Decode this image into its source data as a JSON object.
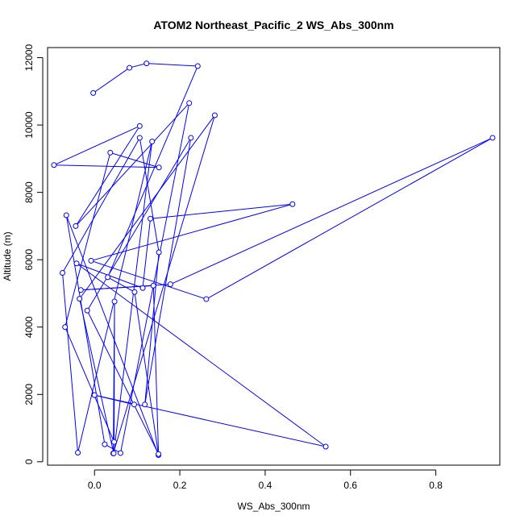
{
  "chart_data": {
    "type": "line",
    "title": "ATOM2 Northeast_Pacific_2 WS_Abs_300nm",
    "xlabel": "WS_Abs_300nm",
    "ylabel": "Altitude (m)",
    "xlim": [
      -0.11,
      0.95
    ],
    "ylim": [
      -100,
      12300
    ],
    "x_ticks": [
      0.0,
      0.2,
      0.4,
      0.6,
      0.8
    ],
    "x_tick_labels": [
      "0.0",
      "0.2",
      "0.4",
      "0.6",
      "0.8"
    ],
    "y_ticks": [
      0,
      2000,
      4000,
      6000,
      8000,
      10000,
      12000
    ],
    "y_tick_labels": [
      "0",
      "2000",
      "4000",
      "6000",
      "8000",
      "10000",
      "12000"
    ],
    "grid": false,
    "legend": "none",
    "series": [
      {
        "color": "#0000ff",
        "marker": "open-circle",
        "points": [
          {
            "x": -0.003,
            "y": 10950
          },
          {
            "x": 0.082,
            "y": 11700
          },
          {
            "x": 0.122,
            "y": 11830
          },
          {
            "x": 0.242,
            "y": 11750
          },
          {
            "x": 0.031,
            "y": 5480
          },
          {
            "x": 0.094,
            "y": 5040
          },
          {
            "x": 0.15,
            "y": 200
          },
          {
            "x": -0.066,
            "y": 7320
          },
          {
            "x": 0.024,
            "y": 520
          },
          {
            "x": 0.061,
            "y": 260
          },
          {
            "x": 0.222,
            "y": 10650
          },
          {
            "x": -0.044,
            "y": 7000
          },
          {
            "x": 0.106,
            "y": 9970
          },
          {
            "x": -0.095,
            "y": 8810
          },
          {
            "x": 0.151,
            "y": 8740
          },
          {
            "x": 0.037,
            "y": 9180
          },
          {
            "x": -0.069,
            "y": 4000
          },
          {
            "x": 0.046,
            "y": 590
          },
          {
            "x": 0.047,
            "y": 4760
          },
          {
            "x": 0.044,
            "y": 250
          },
          {
            "x": 0.282,
            "y": 10290
          },
          {
            "x": -0.035,
            "y": 4840
          },
          {
            "x": 0.045,
            "y": 250
          },
          {
            "x": 0.135,
            "y": 9510
          },
          {
            "x": -0.039,
            "y": 270
          },
          {
            "x": -0.075,
            "y": 5610
          },
          {
            "x": 0.106,
            "y": 9620
          },
          {
            "x": 0.151,
            "y": 6220
          },
          {
            "x": 0.118,
            "y": 1700
          },
          {
            "x": 0.226,
            "y": 9620
          },
          {
            "x": -0.017,
            "y": 4490
          },
          {
            "x": 0.15,
            "y": 230
          },
          {
            "x": 0.138,
            "y": 5230
          },
          {
            "x": -0.032,
            "y": 5100
          },
          {
            "x": 0.178,
            "y": 5270
          },
          {
            "x": 0.933,
            "y": 9620
          },
          {
            "x": 0.262,
            "y": 4830
          },
          {
            "x": -0.008,
            "y": 5970
          },
          {
            "x": 0.464,
            "y": 7650
          },
          {
            "x": 0.131,
            "y": 7220
          },
          {
            "x": 0.113,
            "y": 5160
          },
          {
            "x": -0.042,
            "y": 5890
          },
          {
            "x": 0.542,
            "y": 450
          },
          {
            "x": 0.0,
            "y": 1980
          },
          {
            "x": 0.093,
            "y": 1700
          }
        ]
      }
    ]
  }
}
